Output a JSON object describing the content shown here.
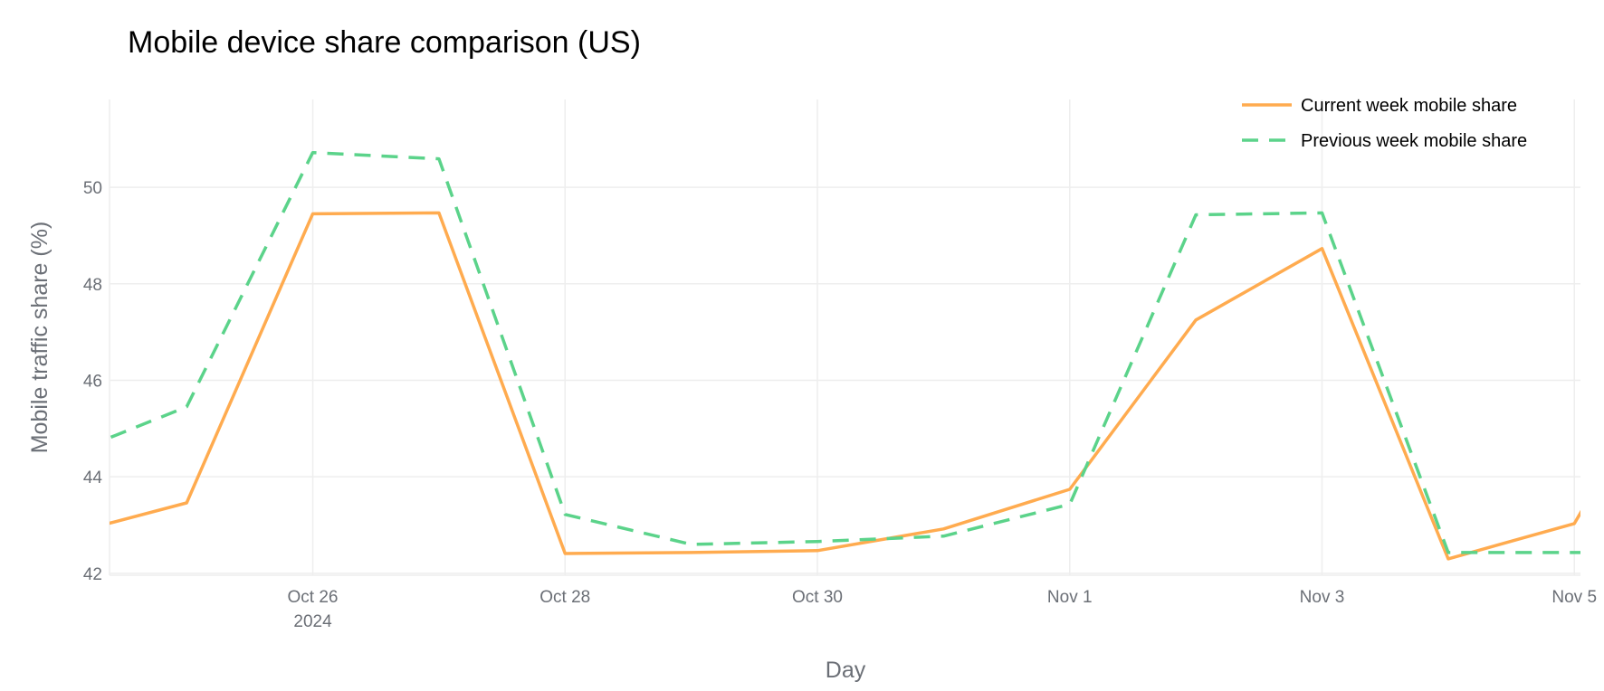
{
  "chart_data": {
    "type": "line",
    "title": "Mobile device share comparison (US)",
    "xlabel": "Day",
    "ylabel": "Mobile traffic share (%)",
    "x": [
      "2024-10-24",
      "2024-10-25",
      "2024-10-26",
      "2024-10-27",
      "2024-10-28",
      "2024-10-29",
      "2024-10-30",
      "2024-10-31",
      "2024-11-01",
      "2024-11-02",
      "2024-11-03",
      "2024-11-04",
      "2024-11-05",
      "2024-11-06"
    ],
    "series": [
      {
        "name": "Current week mobile share",
        "color": "#FFAB4F",
        "dash": "solid",
        "values": [
          42.77,
          43.46,
          49.45,
          49.47,
          42.41,
          42.43,
          42.47,
          42.92,
          43.74,
          47.25,
          48.73,
          42.3,
          43.03,
          47.5
        ]
      },
      {
        "name": "Previous week mobile share",
        "color": "#5BD38A",
        "dash": "dash",
        "values": [
          44.4,
          45.45,
          50.72,
          50.59,
          43.22,
          42.6,
          42.66,
          42.77,
          43.43,
          49.43,
          49.47,
          42.43,
          42.43,
          42.45
        ]
      }
    ],
    "xlim": [
      "2024-10-24T09:20",
      "2024-11-05T01:10"
    ],
    "ylim": [
      41.96,
      51.82
    ],
    "yticks": [
      42,
      44,
      46,
      48,
      50
    ],
    "ytick_labels": [
      "42",
      "44",
      "46",
      "48",
      "50"
    ],
    "xticks": [
      "2024-10-26",
      "2024-10-28",
      "2024-10-30",
      "2024-11-01",
      "2024-11-03",
      "2024-11-05"
    ],
    "xtick_labels": [
      "Oct 26",
      "Oct 28",
      "Oct 30",
      "Nov 1",
      "Nov 3",
      "Nov 5"
    ],
    "xtick_sublabel": "2024",
    "grid": true,
    "legend_position": "top-right"
  }
}
